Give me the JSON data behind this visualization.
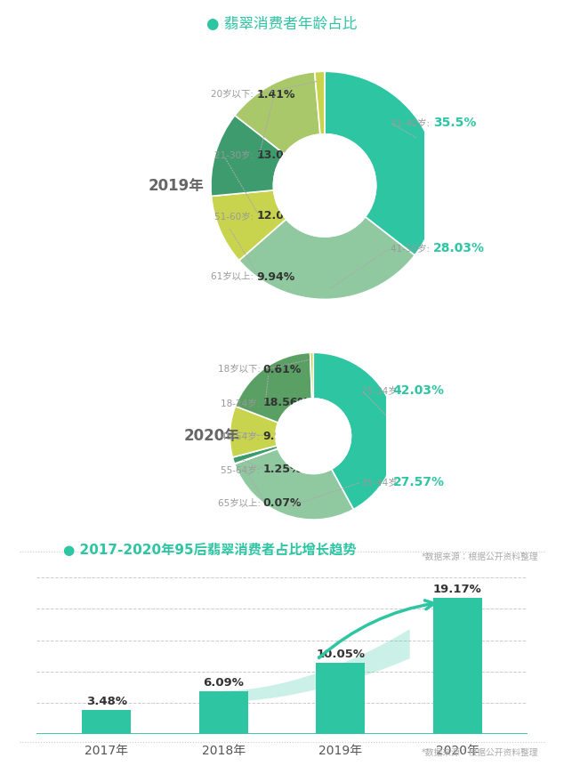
{
  "title1": "翡翠消费者年龄占比",
  "title2": "2017-2020年95后翡翠消费者占比增长趋势",
  "pie2019_values": [
    35.5,
    28.03,
    9.94,
    12.02,
    13.06,
    1.41
  ],
  "pie2019_colors": [
    "#2dc5a2",
    "#90c9a0",
    "#c8d44e",
    "#3d9b6e",
    "#a8c86a",
    "#c8d44e"
  ],
  "pie2019_left_labels": [
    "20岁以下: 1.41%",
    "21-30岁: 13.06%",
    "51-60岁: 12.02%",
    "61岁以上: 9.94%"
  ],
  "pie2019_right_labels": [
    "31-40岁: 35.5%",
    "41-50岁: 28.03%"
  ],
  "pie2020_values": [
    42.03,
    27.57,
    0.07,
    1.25,
    9.92,
    18.56,
    0.61
  ],
  "pie2020_colors": [
    "#2dc5a2",
    "#90c9a0",
    "#2a7d5e",
    "#3d9b6e",
    "#c8d44e",
    "#5a9f64",
    "#c8d44e"
  ],
  "pie2020_left_labels": [
    "18岁以下: 0.61%",
    "18-24岁: 18.56%",
    "45-54岁: 9.92%",
    "55-64岁: 1.25%",
    "65岁以上: 0.07%"
  ],
  "pie2020_right_labels": [
    "25-34岁: 42.03%",
    "35-44岁: 27.57%"
  ],
  "bar_years": [
    "2017年",
    "2018年",
    "2019年",
    "2020年"
  ],
  "bar_values": [
    3.48,
    6.09,
    10.05,
    19.17
  ],
  "bar_labels": [
    "3.48%",
    "6.09%",
    "10.05%",
    "19.17%"
  ],
  "bar_color": "#2dc5a2",
  "teal": "#2dc5a2",
  "title_color": "#2dc5a2",
  "source_text": "*数据来源：根据公开资料整理",
  "year2019_label": "2019年",
  "year2020_label": "2020年",
  "separator_text": "*数据来源：根据公开资料整理"
}
